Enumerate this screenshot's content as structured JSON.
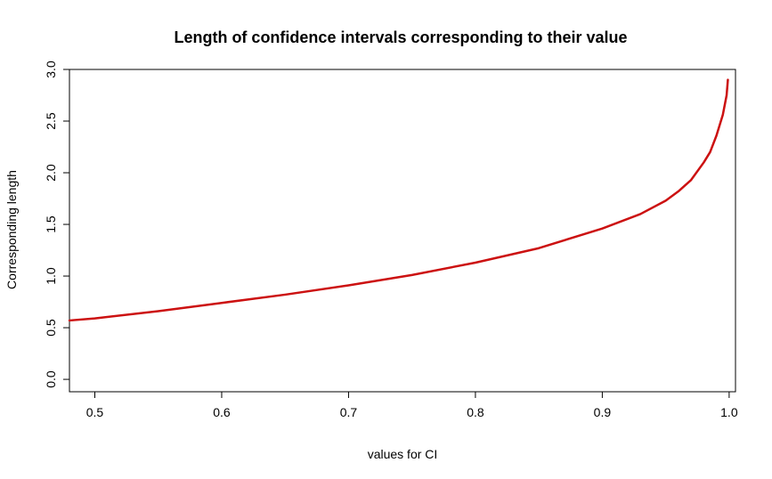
{
  "chart_data": {
    "type": "line",
    "title": "Length of confidence intervals corresponding to their value",
    "xlabel": "values for CI",
    "ylabel": "Corresponding length",
    "xlim": [
      0.48,
      1.005
    ],
    "ylim": [
      -0.12,
      3.0
    ],
    "x_ticks": [
      0.5,
      0.6,
      0.7,
      0.8,
      0.9,
      1.0
    ],
    "x_tick_labels": [
      "0.5",
      "0.6",
      "0.7",
      "0.8",
      "0.9",
      "1.0"
    ],
    "y_ticks": [
      0.0,
      0.5,
      1.0,
      1.5,
      2.0,
      2.5,
      3.0
    ],
    "y_tick_labels": [
      "0.0",
      "0.5",
      "1.0",
      "1.5",
      "2.0",
      "2.5",
      "3.0"
    ],
    "grid": false,
    "series": [
      {
        "color": "#cc1111",
        "x": [
          0.48,
          0.5,
          0.55,
          0.6,
          0.65,
          0.7,
          0.75,
          0.8,
          0.85,
          0.9,
          0.93,
          0.95,
          0.96,
          0.97,
          0.98,
          0.985,
          0.99,
          0.995,
          0.998,
          0.999
        ],
        "y": [
          0.57,
          0.59,
          0.66,
          0.74,
          0.82,
          0.91,
          1.01,
          1.13,
          1.27,
          1.46,
          1.6,
          1.73,
          1.82,
          1.93,
          2.1,
          2.2,
          2.36,
          2.56,
          2.75,
          2.9
        ]
      }
    ]
  }
}
